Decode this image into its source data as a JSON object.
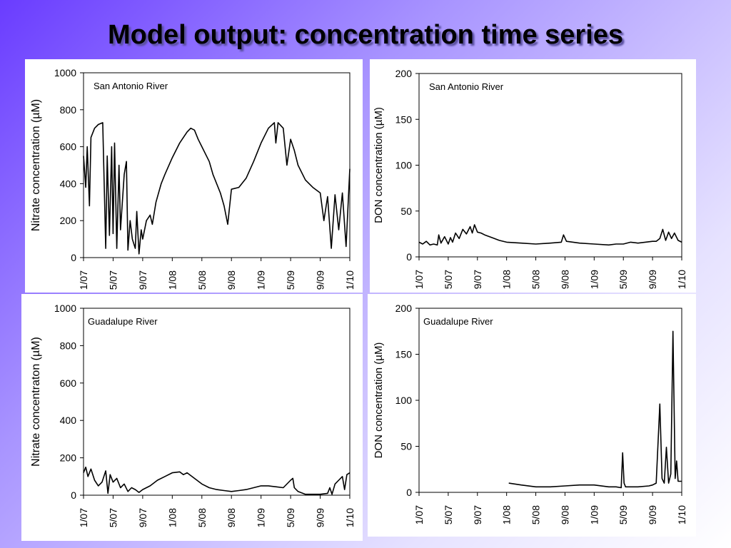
{
  "title": "Model output: concentration time series",
  "chart_data": [
    {
      "type": "line",
      "ylabel": "Nitrate concentration (µM)",
      "annotation": "San Antonio River",
      "color": "#000000",
      "xlim": [
        0,
        36
      ],
      "ylim": [
        0,
        1000
      ],
      "yticks": [
        0,
        200,
        400,
        600,
        800,
        1000
      ],
      "xticks": [
        {
          "value": 0,
          "label": "1/07"
        },
        {
          "value": 4,
          "label": "5/07"
        },
        {
          "value": 8,
          "label": "9/07"
        },
        {
          "value": 12,
          "label": "1/08"
        },
        {
          "value": 16,
          "label": "5/08"
        },
        {
          "value": 20,
          "label": "9/08"
        },
        {
          "value": 24,
          "label": "1/09"
        },
        {
          "value": 28,
          "label": "5/09"
        },
        {
          "value": 32,
          "label": "9/09"
        },
        {
          "value": 36,
          "label": "1/10"
        }
      ],
      "x": [
        0,
        0.3,
        0.5,
        0.8,
        1,
        1.5,
        2,
        2.6,
        3,
        3.2,
        3.5,
        3.8,
        4,
        4.2,
        4.5,
        4.8,
        5,
        5.5,
        5.8,
        6,
        6.3,
        6.6,
        7,
        7.2,
        7.5,
        7.8,
        8,
        8.5,
        9,
        9.3,
        9.8,
        10.5,
        11,
        12,
        13,
        14,
        14.5,
        15,
        15.5,
        16,
        17,
        17.5,
        18,
        18.5,
        19,
        19.5,
        20,
        21,
        22,
        23,
        24,
        25,
        25.8,
        26,
        26.3,
        27,
        27.5,
        28,
        28.5,
        29,
        30,
        31,
        32,
        32.5,
        33,
        33.5,
        34,
        34.5,
        35,
        35.5,
        36
      ],
      "values": [
        550,
        380,
        600,
        280,
        650,
        700,
        720,
        730,
        50,
        550,
        120,
        600,
        130,
        620,
        50,
        500,
        150,
        450,
        520,
        40,
        200,
        100,
        50,
        250,
        20,
        150,
        100,
        200,
        230,
        180,
        300,
        400,
        450,
        540,
        620,
        680,
        700,
        690,
        640,
        600,
        520,
        450,
        400,
        350,
        280,
        180,
        370,
        380,
        430,
        520,
        620,
        700,
        730,
        620,
        730,
        700,
        500,
        640,
        580,
        500,
        420,
        380,
        350,
        200,
        330,
        50,
        340,
        150,
        350,
        60,
        480
      ]
    },
    {
      "type": "line",
      "ylabel": "DON concentration (µM)",
      "annotation": "San Antonio River",
      "color": "#000000",
      "xlim": [
        0,
        36
      ],
      "ylim": [
        0,
        200
      ],
      "yticks": [
        0,
        50,
        100,
        150,
        200
      ],
      "xticks": [
        {
          "value": 0,
          "label": "1/07"
        },
        {
          "value": 4,
          "label": "5/07"
        },
        {
          "value": 8,
          "label": "9/07"
        },
        {
          "value": 12,
          "label": "1/08"
        },
        {
          "value": 16,
          "label": "5/08"
        },
        {
          "value": 20,
          "label": "9/08"
        },
        {
          "value": 24,
          "label": "1/09"
        },
        {
          "value": 28,
          "label": "5/09"
        },
        {
          "value": 32,
          "label": "9/09"
        },
        {
          "value": 36,
          "label": "1/10"
        }
      ],
      "x": [
        0,
        0.5,
        1,
        1.5,
        2,
        2.5,
        2.7,
        3,
        3.5,
        4,
        4.3,
        4.6,
        5,
        5.5,
        6,
        6.5,
        7,
        7.3,
        7.6,
        8,
        8.5,
        9,
        10,
        11,
        12,
        14,
        16,
        18,
        19.5,
        19.8,
        20.2,
        22,
        24,
        26,
        27,
        28,
        29,
        30,
        31,
        32,
        32.5,
        33,
        33.4,
        33.8,
        34.2,
        34.6,
        35,
        35.5,
        36
      ],
      "values": [
        16,
        14,
        17,
        13,
        14,
        13,
        24,
        15,
        22,
        14,
        21,
        16,
        26,
        20,
        30,
        25,
        33,
        26,
        35,
        27,
        26,
        24,
        21,
        18,
        16,
        15,
        14,
        15,
        16,
        24,
        17,
        15,
        14,
        13,
        14,
        14,
        16,
        15,
        16,
        17,
        17,
        20,
        30,
        18,
        27,
        20,
        26,
        18,
        16
      ]
    },
    {
      "type": "line",
      "ylabel": "Nitrate concentraton (µM)",
      "annotation": "Guadalupe River",
      "color": "#000000",
      "xlim": [
        0,
        36
      ],
      "ylim": [
        0,
        1000
      ],
      "yticks": [
        0,
        200,
        400,
        600,
        800,
        1000
      ],
      "xticks": [
        {
          "value": 0,
          "label": "1/07"
        },
        {
          "value": 4,
          "label": "5/07"
        },
        {
          "value": 8,
          "label": "9/07"
        },
        {
          "value": 12,
          "label": "1/08"
        },
        {
          "value": 16,
          "label": "5/08"
        },
        {
          "value": 20,
          "label": "9/08"
        },
        {
          "value": 24,
          "label": "1/09"
        },
        {
          "value": 28,
          "label": "5/09"
        },
        {
          "value": 32,
          "label": "9/09"
        },
        {
          "value": 36,
          "label": "1/10"
        }
      ],
      "x": [
        0,
        0.3,
        0.6,
        1,
        1.5,
        2,
        2.5,
        3,
        3.3,
        3.6,
        4,
        4.5,
        5,
        5.5,
        6,
        6.5,
        7,
        7.5,
        8,
        9,
        10,
        11,
        12,
        13,
        13.5,
        14,
        15,
        16,
        17,
        18,
        19,
        20,
        21,
        22,
        23,
        24,
        25,
        26,
        27,
        28,
        28.3,
        28.5,
        29,
        30,
        31,
        32,
        33,
        33.3,
        33.6,
        34,
        34.5,
        35,
        35.3,
        35.6,
        36
      ],
      "values": [
        120,
        150,
        100,
        140,
        80,
        50,
        70,
        130,
        10,
        110,
        70,
        90,
        40,
        60,
        20,
        40,
        30,
        15,
        30,
        50,
        80,
        100,
        120,
        125,
        110,
        120,
        90,
        60,
        40,
        30,
        25,
        20,
        25,
        30,
        40,
        50,
        50,
        45,
        40,
        80,
        90,
        40,
        20,
        5,
        5,
        5,
        10,
        40,
        5,
        60,
        80,
        100,
        30,
        110,
        120
      ]
    },
    {
      "type": "line",
      "ylabel": "DON concentration (µM)",
      "annotation": "Guadalupe River",
      "color": "#000000",
      "xlim": [
        0,
        36
      ],
      "ylim": [
        0,
        200
      ],
      "yticks": [
        0,
        50,
        100,
        150,
        200
      ],
      "xticks": [
        {
          "value": 0,
          "label": "1/07"
        },
        {
          "value": 4,
          "label": "5/07"
        },
        {
          "value": 8,
          "label": "9/07"
        },
        {
          "value": 12,
          "label": "1/08"
        },
        {
          "value": 16,
          "label": "5/08"
        },
        {
          "value": 20,
          "label": "9/08"
        },
        {
          "value": 24,
          "label": "1/09"
        },
        {
          "value": 28,
          "label": "5/09"
        },
        {
          "value": 32,
          "label": "9/09"
        },
        {
          "value": 36,
          "label": "1/10"
        }
      ],
      "x": [
        12.3,
        14,
        16,
        18,
        20,
        22,
        24,
        26,
        27,
        27.7,
        27.9,
        28.1,
        28.3,
        30,
        31.5,
        32,
        32.5,
        33,
        33.3,
        33.6,
        33.9,
        34.2,
        34.5,
        34.8,
        35.1,
        35.3,
        35.5,
        36
      ],
      "values": [
        10,
        8,
        6,
        6,
        7,
        8,
        8,
        6,
        6,
        5,
        43,
        10,
        6,
        6,
        7,
        8,
        10,
        96,
        15,
        10,
        49,
        10,
        20,
        175,
        15,
        34,
        12,
        12
      ]
    }
  ]
}
